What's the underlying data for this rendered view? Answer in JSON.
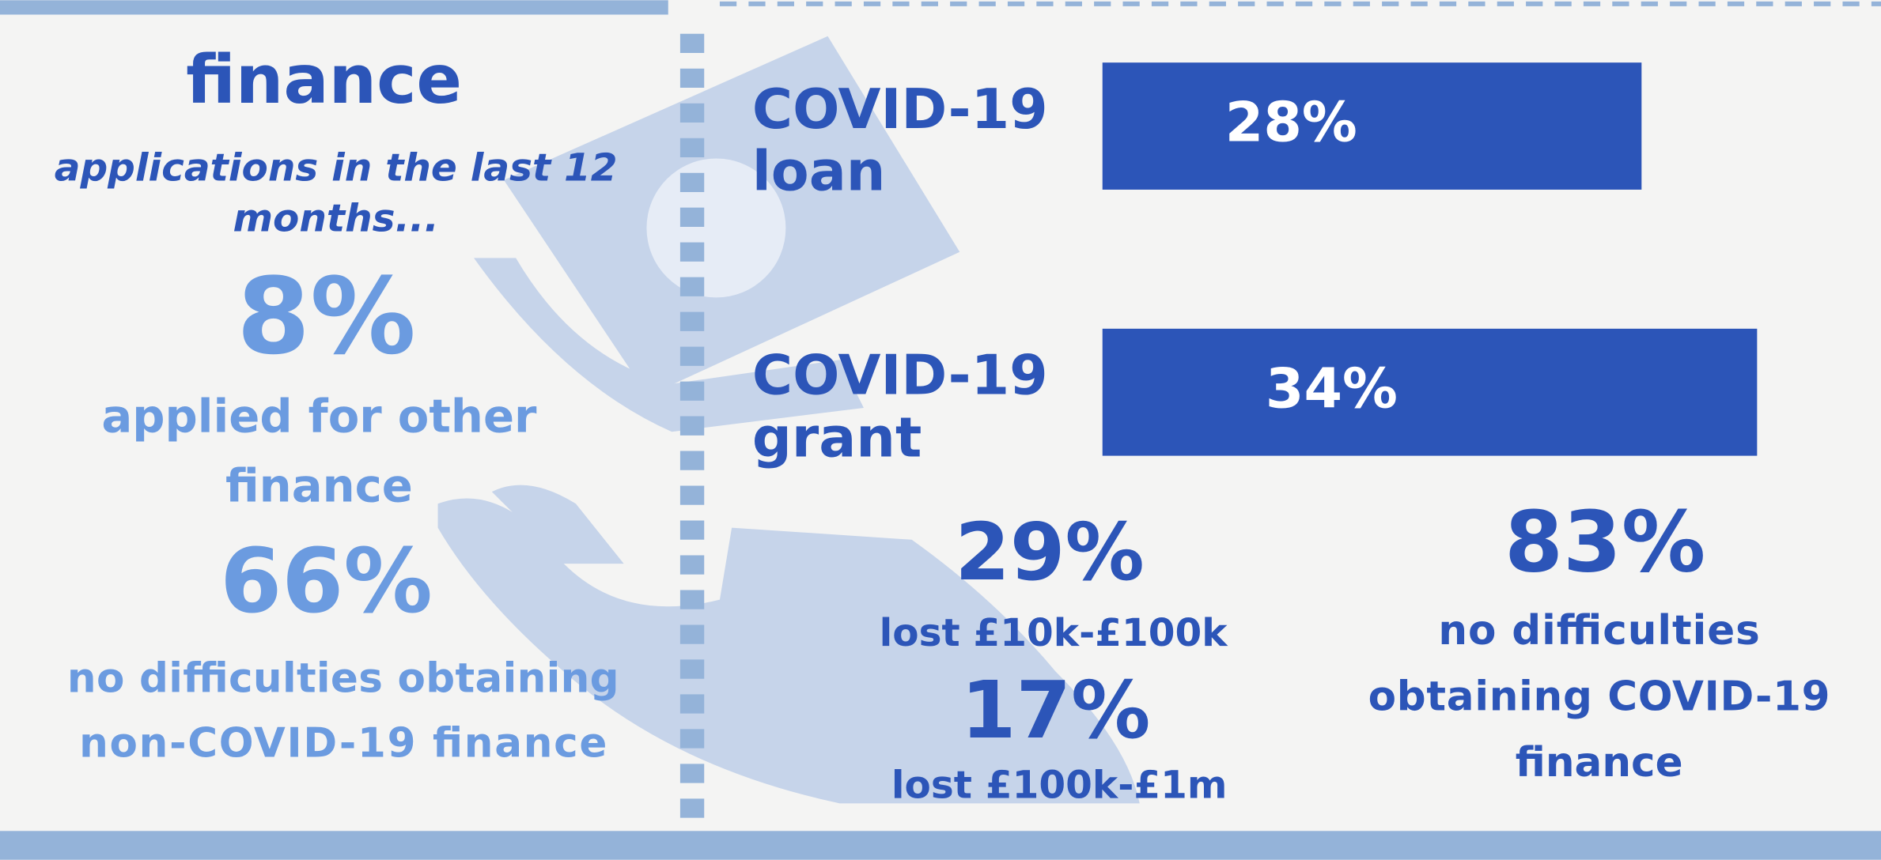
{
  "left": {
    "heading": "finance",
    "subtitle": [
      "applications in the last 12",
      "months..."
    ],
    "stat1": {
      "value": "8%",
      "caption": [
        "applied for other",
        "finance"
      ]
    },
    "stat2": {
      "value": "66%",
      "caption": [
        "no difficulties obtaining",
        "non-COVID-19 finance"
      ]
    }
  },
  "bars": [
    {
      "label": [
        "COVID-19",
        "loan"
      ],
      "value": 28,
      "value_label": "28%"
    },
    {
      "label": [
        "COVID-19",
        "grant"
      ],
      "value": 34,
      "value_label": "34%"
    }
  ],
  "stats": [
    {
      "value": "29%",
      "caption": [
        "lost £10k-£100k"
      ]
    },
    {
      "value": "17%",
      "caption": [
        "lost £100k-£1m"
      ]
    },
    {
      "value": "83%",
      "caption": [
        "no difficulties",
        "obtaining COVID-19",
        "finance"
      ]
    }
  ]
}
